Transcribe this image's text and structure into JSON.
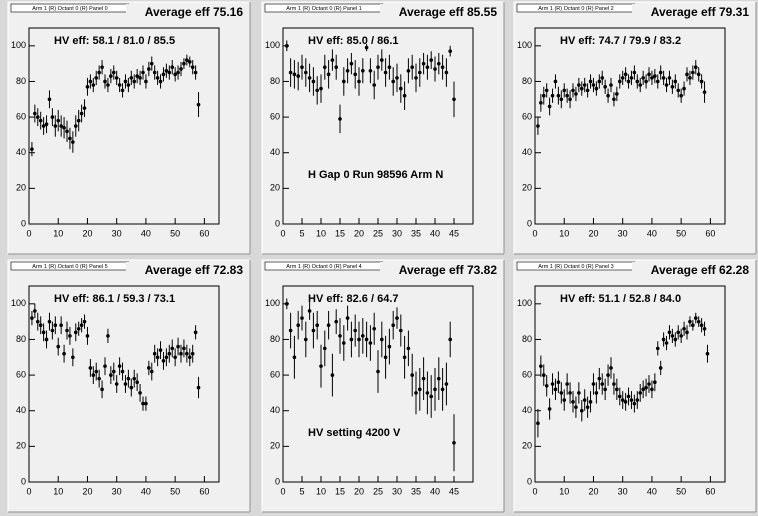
{
  "chart_data": [
    {
      "type": "scatter",
      "header": "Arm 1 (R) Octant 0 (R) Panel 0",
      "title": "Average eff 75.16",
      "annotation": "HV eff:   58.1 / 81.0 / 85.5",
      "x": [
        1,
        2,
        3,
        4,
        5,
        6,
        7,
        8,
        9,
        10,
        11,
        12,
        13,
        14,
        15,
        16,
        17,
        18,
        19,
        20,
        21,
        22,
        23,
        24,
        25,
        26,
        27,
        28,
        29,
        30,
        31,
        32,
        33,
        34,
        35,
        36,
        37,
        38,
        39,
        40,
        41,
        42,
        43,
        44,
        45,
        46,
        47,
        48,
        49,
        50,
        51,
        52,
        53,
        54,
        55,
        56,
        57,
        58
      ],
      "values": [
        42,
        62,
        60,
        58,
        55,
        56,
        70,
        60,
        55,
        58,
        55,
        54,
        52,
        48,
        46,
        55,
        58,
        62,
        65,
        77,
        80,
        78,
        82,
        85,
        88,
        80,
        78,
        83,
        85,
        82,
        78,
        75,
        80,
        78,
        82,
        80,
        83,
        82,
        85,
        80,
        87,
        90,
        85,
        82,
        80,
        84,
        86,
        85,
        88,
        84,
        85,
        87,
        90,
        92,
        91,
        88,
        85,
        67
      ],
      "errors": [
        4,
        5,
        5,
        5,
        5,
        5,
        5,
        5,
        6,
        6,
        6,
        6,
        6,
        6,
        6,
        6,
        6,
        5,
        5,
        5,
        4,
        4,
        4,
        4,
        4,
        4,
        4,
        4,
        4,
        4,
        4,
        4,
        4,
        4,
        4,
        4,
        4,
        4,
        4,
        4,
        4,
        4,
        4,
        4,
        4,
        4,
        4,
        4,
        4,
        4,
        4,
        4,
        3,
        3,
        3,
        4,
        4,
        7
      ],
      "color": "#000000",
      "xlim": [
        0,
        65
      ],
      "ylim": [
        0,
        110
      ],
      "xticks": [
        0,
        10,
        20,
        30,
        40,
        50,
        60
      ],
      "yticks": [
        0,
        20,
        40,
        60,
        80,
        100
      ]
    },
    {
      "type": "scatter",
      "header": "Arm 1 (R) Octant 0 (R) Panel 1",
      "title": "Average eff 85.55",
      "annotation": "HV eff:   85.0 / 86.1",
      "note": "H Gap 0 Run 98596 Arm N",
      "x": [
        1,
        2,
        3,
        4,
        5,
        6,
        7,
        8,
        9,
        10,
        11,
        12,
        13,
        14,
        15,
        16,
        17,
        18,
        19,
        20,
        21,
        22,
        23,
        24,
        25,
        26,
        27,
        28,
        29,
        30,
        31,
        32,
        33,
        34,
        35,
        36,
        37,
        38,
        39,
        40,
        41,
        42,
        43,
        44,
        45
      ],
      "values": [
        100,
        85,
        84,
        83,
        88,
        85,
        82,
        80,
        75,
        76,
        88,
        84,
        92,
        88,
        59,
        80,
        86,
        90,
        84,
        80,
        86,
        99,
        86,
        78,
        88,
        92,
        85,
        88,
        80,
        82,
        76,
        72,
        86,
        88,
        82,
        85,
        90,
        88,
        92,
        87,
        90,
        88,
        85,
        97,
        70
      ],
      "errors": [
        3,
        8,
        8,
        8,
        7,
        8,
        8,
        8,
        8,
        8,
        7,
        8,
        6,
        7,
        8,
        8,
        7,
        6,
        8,
        8,
        7,
        2,
        7,
        8,
        7,
        6,
        8,
        7,
        8,
        8,
        8,
        8,
        7,
        7,
        8,
        8,
        6,
        7,
        5,
        7,
        6,
        7,
        8,
        3,
        10
      ],
      "color": "#000000",
      "xlim": [
        0,
        50
      ],
      "ylim": [
        0,
        110
      ],
      "xticks": [
        0,
        5,
        10,
        15,
        20,
        25,
        30,
        35,
        40,
        45
      ],
      "yticks": [
        0,
        20,
        40,
        60,
        80,
        100
      ]
    },
    {
      "type": "scatter",
      "header": "Arm 1 (R) Octant 0 (R) Panel 2",
      "title": "Average eff 79.31",
      "annotation": "HV eff:   74.7 / 79.9 / 83.2",
      "x": [
        1,
        2,
        3,
        4,
        5,
        6,
        7,
        8,
        9,
        10,
        11,
        12,
        13,
        14,
        15,
        16,
        17,
        18,
        19,
        20,
        21,
        22,
        23,
        24,
        25,
        26,
        27,
        28,
        29,
        30,
        31,
        32,
        33,
        34,
        35,
        36,
        37,
        38,
        39,
        40,
        41,
        42,
        43,
        44,
        45,
        46,
        47,
        48,
        49,
        50,
        51,
        52,
        53,
        54,
        55,
        56,
        57,
        58
      ],
      "values": [
        55,
        68,
        72,
        75,
        66,
        72,
        80,
        72,
        70,
        75,
        72,
        70,
        75,
        73,
        78,
        76,
        78,
        75,
        80,
        78,
        76,
        80,
        82,
        77,
        72,
        78,
        70,
        73,
        80,
        82,
        84,
        80,
        82,
        85,
        80,
        78,
        82,
        80,
        84,
        82,
        83,
        80,
        85,
        82,
        78,
        82,
        77,
        80,
        75,
        72,
        76,
        84,
        82,
        85,
        88,
        84,
        80,
        74
      ],
      "errors": [
        5,
        5,
        5,
        4,
        5,
        4,
        4,
        5,
        5,
        4,
        4,
        5,
        4,
        4,
        4,
        4,
        4,
        4,
        4,
        4,
        4,
        4,
        4,
        4,
        4,
        4,
        4,
        4,
        4,
        4,
        4,
        4,
        4,
        4,
        4,
        4,
        4,
        4,
        4,
        4,
        4,
        4,
        4,
        4,
        4,
        4,
        4,
        4,
        4,
        4,
        4,
        4,
        4,
        4,
        4,
        4,
        4,
        6
      ],
      "color": "#000000",
      "xlim": [
        0,
        65
      ],
      "ylim": [
        0,
        110
      ],
      "xticks": [
        0,
        10,
        20,
        30,
        40,
        50,
        60
      ],
      "yticks": [
        0,
        20,
        40,
        60,
        80,
        100
      ]
    },
    {
      "type": "scatter",
      "header": "Arm 1 (R) Octant 0 (R) Panel 5",
      "title": "Average eff 72.83",
      "annotation": "HV eff:   86.1 / 59.3 / 73.1",
      "x": [
        1,
        2,
        3,
        4,
        5,
        6,
        7,
        8,
        9,
        10,
        11,
        12,
        13,
        14,
        15,
        16,
        17,
        18,
        19,
        20,
        21,
        22,
        23,
        24,
        25,
        26,
        27,
        28,
        29,
        30,
        31,
        32,
        33,
        34,
        35,
        36,
        37,
        38,
        39,
        40,
        41,
        42,
        43,
        44,
        45,
        46,
        47,
        48,
        49,
        50,
        51,
        52,
        53,
        54,
        55,
        56,
        57,
        58
      ],
      "values": [
        92,
        96,
        90,
        88,
        84,
        80,
        90,
        85,
        88,
        76,
        88,
        72,
        85,
        82,
        70,
        84,
        86,
        88,
        90,
        82,
        64,
        60,
        62,
        58,
        52,
        65,
        82,
        60,
        62,
        55,
        65,
        62,
        55,
        58,
        53,
        58,
        56,
        50,
        44,
        44,
        64,
        62,
        72,
        70,
        74,
        68,
        70,
        72,
        75,
        70,
        76,
        72,
        75,
        72,
        70,
        72,
        84,
        53
      ],
      "errors": [
        4,
        4,
        5,
        5,
        5,
        5,
        5,
        5,
        5,
        5,
        5,
        5,
        5,
        5,
        5,
        5,
        4,
        4,
        4,
        5,
        5,
        5,
        5,
        5,
        5,
        5,
        4,
        5,
        5,
        5,
        5,
        5,
        5,
        5,
        5,
        5,
        5,
        5,
        4,
        4,
        4,
        5,
        5,
        5,
        5,
        5,
        5,
        5,
        5,
        5,
        5,
        5,
        5,
        5,
        5,
        5,
        4,
        6
      ],
      "color": "#000000",
      "xlim": [
        0,
        65
      ],
      "ylim": [
        0,
        110
      ],
      "xticks": [
        0,
        10,
        20,
        30,
        40,
        50,
        60
      ],
      "yticks": [
        0,
        20,
        40,
        60,
        80,
        100
      ]
    },
    {
      "type": "scatter",
      "header": "Arm 1 (R) Octant 0 (R) Panel 4",
      "title": "Average eff 73.82",
      "annotation": "HV eff:   82.6 / 64.7",
      "note": "HV setting 4200 V",
      "x": [
        1,
        2,
        3,
        4,
        5,
        6,
        7,
        8,
        9,
        10,
        11,
        12,
        13,
        14,
        15,
        16,
        17,
        18,
        19,
        20,
        21,
        22,
        23,
        24,
        25,
        26,
        27,
        28,
        29,
        30,
        31,
        32,
        33,
        34,
        35,
        36,
        37,
        38,
        39,
        40,
        41,
        42,
        43,
        44,
        45
      ],
      "values": [
        100,
        85,
        70,
        88,
        92,
        80,
        96,
        85,
        88,
        65,
        75,
        88,
        60,
        90,
        82,
        78,
        92,
        80,
        85,
        80,
        82,
        80,
        78,
        86,
        62,
        80,
        70,
        76,
        88,
        92,
        85,
        70,
        75,
        60,
        50,
        52,
        58,
        50,
        48,
        52,
        58,
        52,
        55,
        80,
        22
      ],
      "errors": [
        3,
        10,
        12,
        8,
        7,
        10,
        5,
        10,
        8,
        12,
        10,
        8,
        12,
        7,
        10,
        10,
        7,
        10,
        9,
        10,
        10,
        10,
        10,
        9,
        12,
        10,
        12,
        10,
        8,
        6,
        9,
        12,
        10,
        12,
        12,
        12,
        12,
        12,
        12,
        12,
        12,
        12,
        12,
        10,
        16
      ],
      "color": "#000000",
      "xlim": [
        0,
        50
      ],
      "ylim": [
        0,
        110
      ],
      "xticks": [
        0,
        5,
        10,
        15,
        20,
        25,
        30,
        35,
        40,
        45
      ],
      "yticks": [
        0,
        20,
        40,
        60,
        80,
        100
      ]
    },
    {
      "type": "scatter",
      "header": "Arm 1 (R) Octant 0 (R) Panel 3",
      "title": "Average eff 62.28",
      "annotation": "HV eff:   51.1 / 52.8 / 84.0",
      "x": [
        1,
        2,
        3,
        4,
        5,
        6,
        7,
        8,
        9,
        10,
        11,
        12,
        13,
        14,
        15,
        16,
        17,
        18,
        19,
        20,
        21,
        22,
        23,
        24,
        25,
        26,
        27,
        28,
        29,
        30,
        31,
        32,
        33,
        34,
        35,
        36,
        37,
        38,
        39,
        40,
        41,
        42,
        43,
        44,
        45,
        46,
        47,
        48,
        49,
        50,
        51,
        52,
        53,
        54,
        55,
        56,
        57,
        58,
        59
      ],
      "values": [
        33,
        65,
        60,
        54,
        41,
        55,
        52,
        56,
        50,
        46,
        55,
        50,
        45,
        42,
        50,
        40,
        46,
        42,
        45,
        55,
        50,
        58,
        55,
        52,
        60,
        64,
        55,
        52,
        48,
        46,
        45,
        48,
        46,
        44,
        46,
        50,
        52,
        53,
        55,
        52,
        56,
        75,
        64,
        80,
        78,
        84,
        82,
        80,
        84,
        82,
        86,
        84,
        90,
        88,
        92,
        90,
        88,
        86,
        72
      ],
      "errors": [
        8,
        6,
        6,
        6,
        6,
        6,
        6,
        6,
        6,
        6,
        6,
        6,
        6,
        6,
        6,
        6,
        6,
        6,
        6,
        6,
        6,
        6,
        6,
        6,
        6,
        6,
        6,
        6,
        5,
        5,
        5,
        5,
        5,
        5,
        5,
        5,
        5,
        5,
        5,
        5,
        5,
        4,
        4,
        4,
        4,
        4,
        4,
        4,
        4,
        4,
        4,
        4,
        3,
        3,
        3,
        3,
        4,
        4,
        5
      ],
      "color": "#000000",
      "xlim": [
        0,
        65
      ],
      "ylim": [
        0,
        110
      ],
      "xticks": [
        0,
        10,
        20,
        30,
        40,
        50,
        60
      ],
      "yticks": [
        0,
        20,
        40,
        60,
        80,
        100
      ]
    }
  ]
}
